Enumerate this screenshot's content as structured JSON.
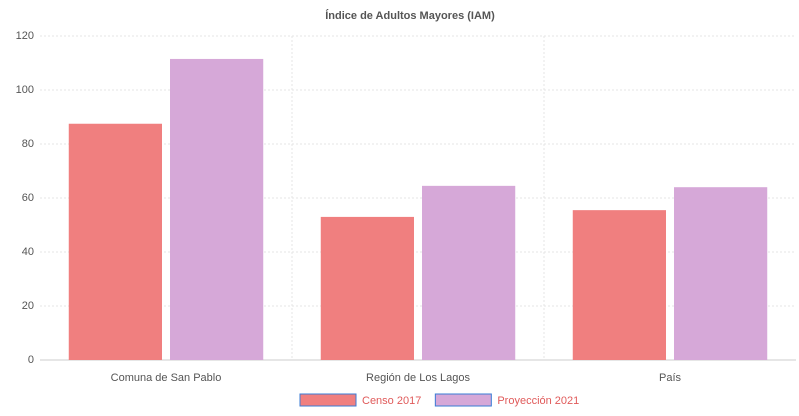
{
  "chart_data": {
    "type": "bar",
    "title": "Índice de Adultos Mayores (IAM)",
    "categories": [
      "Comuna de San Pablo",
      "Región de Los Lagos",
      "País"
    ],
    "series": [
      {
        "name": "Censo 2017",
        "color": "#f07f7f",
        "values": [
          87.5,
          53,
          55.5
        ]
      },
      {
        "name": "Proyección 2021",
        "color": "#d6a8d8",
        "values": [
          111.5,
          64.5,
          64
        ]
      }
    ],
    "ylim": [
      0,
      120
    ],
    "yticks": [
      0,
      20,
      40,
      60,
      80,
      100,
      120
    ],
    "grid": true,
    "legend": "bottom"
  }
}
